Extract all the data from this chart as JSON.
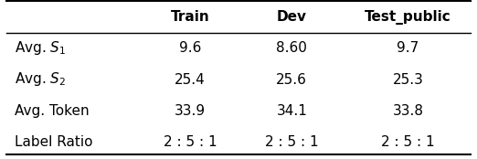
{
  "col_headers": [
    "",
    "Train",
    "Dev",
    "Test_public"
  ],
  "row_labels": [
    "Avg. $S_1$",
    "Avg. $S_2$",
    "Avg. Token",
    "Label Ratio"
  ],
  "table_data": [
    [
      "9.6",
      "8.60",
      "9.7"
    ],
    [
      "25.4",
      "25.6",
      "25.3"
    ],
    [
      "33.9",
      "34.1",
      "33.8"
    ],
    [
      "2 : 5 : 1",
      "2 : 5 : 1",
      "2 : 5 : 1"
    ]
  ],
  "bg_color": "#ffffff",
  "text_color": "#000000",
  "header_fontweight": "bold",
  "fontsize": 11,
  "header_fontsize": 11
}
